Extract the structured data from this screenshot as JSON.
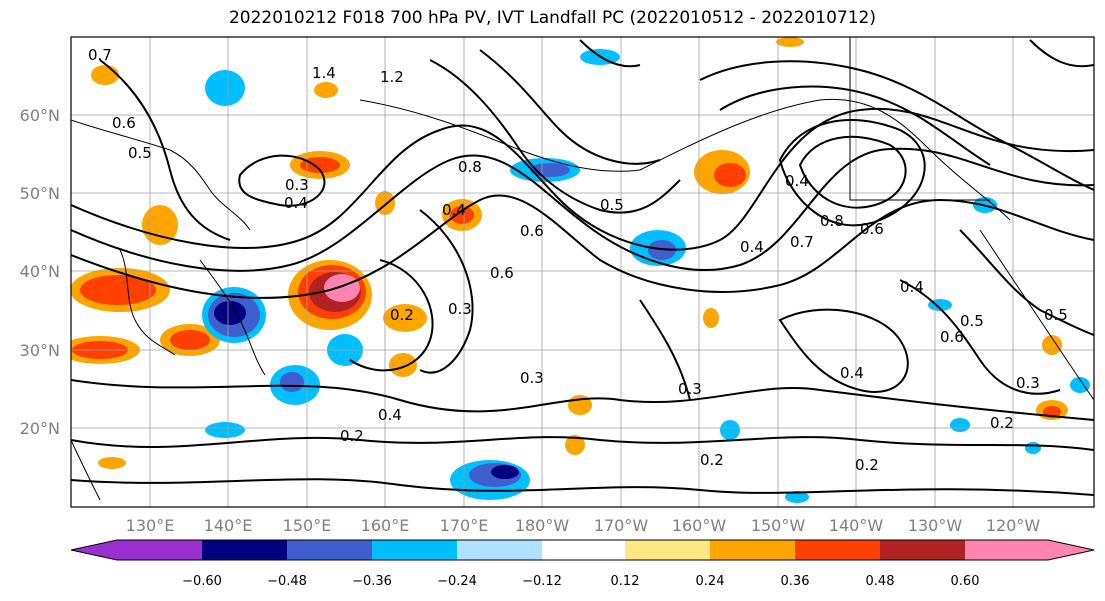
{
  "title": "2022010212 F018 700 hPa PV, IVT Landfall PC (2022010512 - 2022010712)",
  "map": {
    "lon_labels": [
      "130°E",
      "140°E",
      "150°E",
      "160°E",
      "170°E",
      "180°W",
      "170°W",
      "160°W",
      "150°W",
      "140°W",
      "130°W",
      "120°W"
    ],
    "lat_labels": [
      "60°N",
      "50°N",
      "40°N",
      "30°N",
      "20°N"
    ],
    "contour_labels": [
      "0.7",
      "0.6",
      "0.5",
      "1.4",
      "1.2",
      "0.8",
      "0.6",
      "0.3",
      "0.4",
      "0.2",
      "0.6",
      "0.4",
      "0.3",
      "0.2",
      "0.3",
      "0.4",
      "0.5",
      "0.4",
      "0.7",
      "0.8",
      "0.6",
      "0.4",
      "0.4",
      "0.6",
      "0.5",
      "0.3",
      "0.2",
      "0.2",
      "0.2",
      "0.4",
      "0.3",
      "0.5"
    ]
  },
  "colorbar": {
    "tick_labels": [
      "−0.60",
      "−0.48",
      "−0.36",
      "−0.24",
      "−0.12",
      "0.12",
      "0.24",
      "0.36",
      "0.48",
      "0.60"
    ],
    "colors": [
      "#9b30d0",
      "#000080",
      "#3f5fcf",
      "#00bfff",
      "#b0e2ff",
      "#ffffff",
      "#ffe882",
      "#ffa500",
      "#ff4000",
      "#b22222",
      "#ff85b0",
      "#ff85b0"
    ]
  }
}
